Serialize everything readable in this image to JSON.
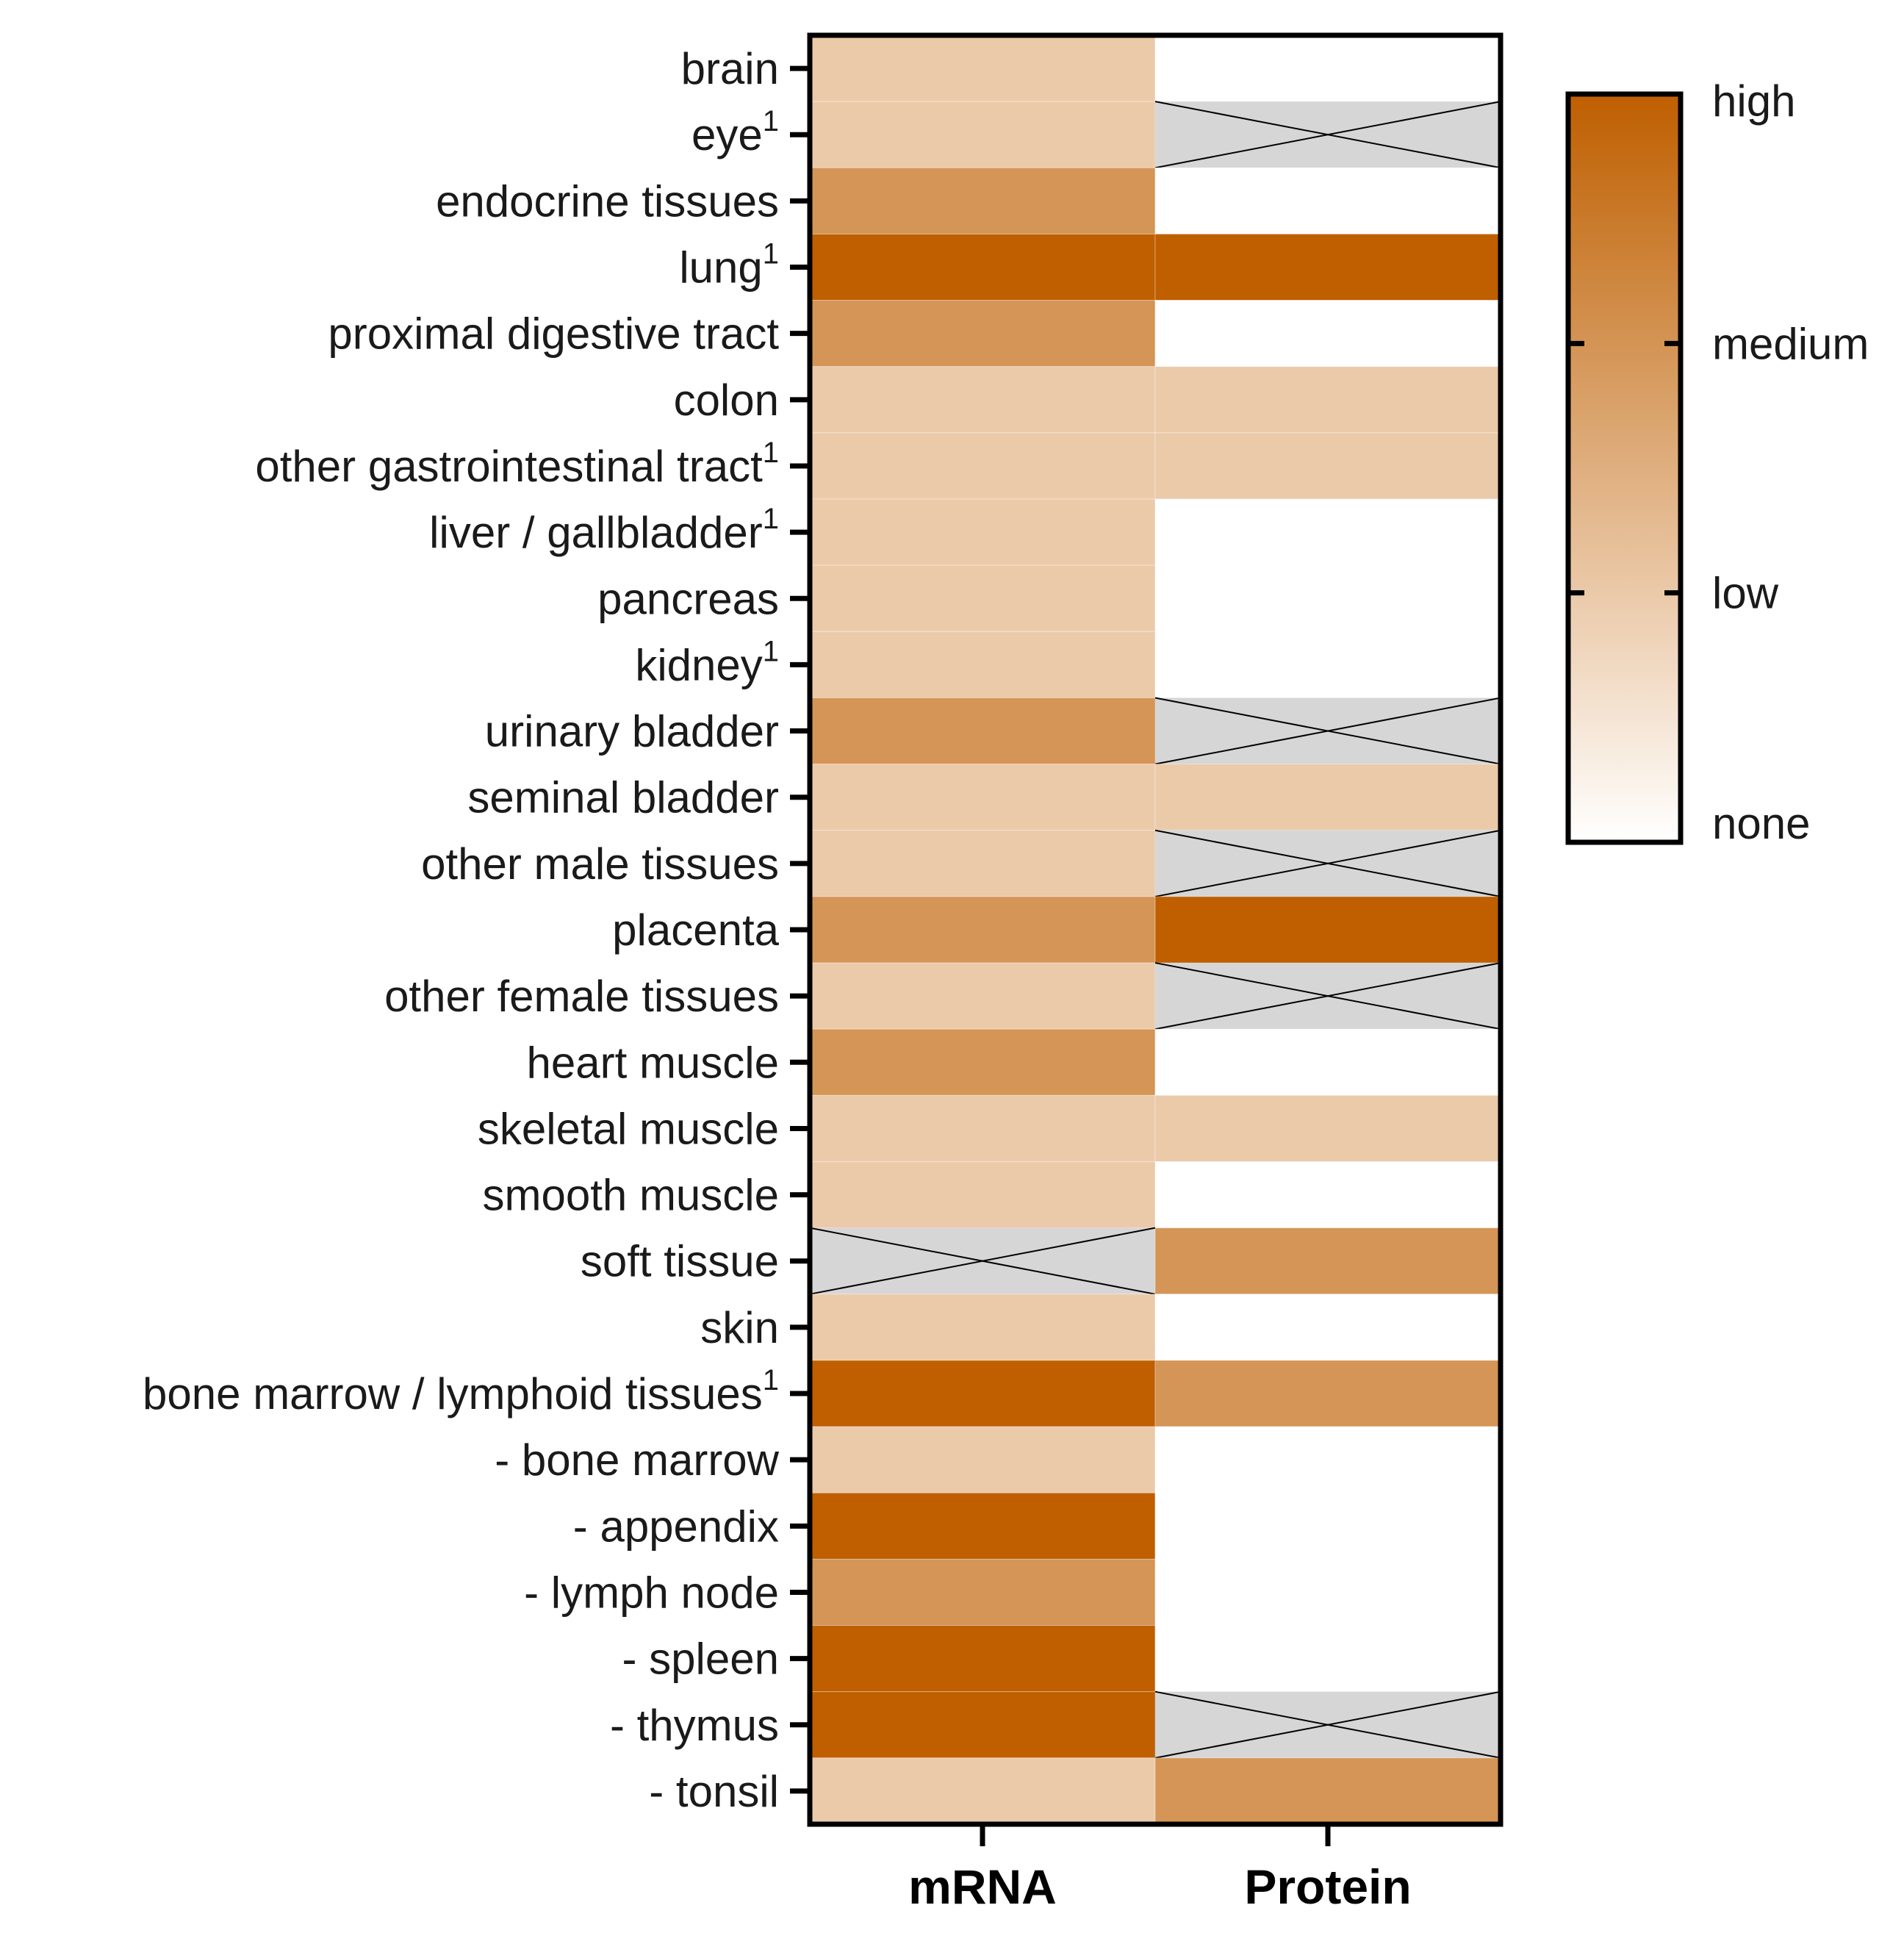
{
  "chart_data": {
    "type": "heatmap",
    "columns": [
      "mRNA",
      "Protein"
    ],
    "rows": [
      {
        "label": "brain",
        "sup": "",
        "mRNA": 1,
        "Protein": 0
      },
      {
        "label": "eye",
        "sup": "1",
        "mRNA": 1,
        "Protein": null
      },
      {
        "label": "endocrine tissues",
        "sup": "",
        "mRNA": 2,
        "Protein": 0
      },
      {
        "label": "lung",
        "sup": "1",
        "mRNA": 3,
        "Protein": 3
      },
      {
        "label": "proximal digestive tract",
        "sup": "",
        "mRNA": 2,
        "Protein": 0
      },
      {
        "label": "colon",
        "sup": "",
        "mRNA": 1,
        "Protein": 1
      },
      {
        "label": "other gastrointestinal tract",
        "sup": "1",
        "mRNA": 1,
        "Protein": 1
      },
      {
        "label": "liver / gallbladder",
        "sup": "1",
        "mRNA": 1,
        "Protein": 0
      },
      {
        "label": "pancreas",
        "sup": "",
        "mRNA": 1,
        "Protein": 0
      },
      {
        "label": "kidney",
        "sup": "1",
        "mRNA": 1,
        "Protein": 0
      },
      {
        "label": "urinary bladder",
        "sup": "",
        "mRNA": 2,
        "Protein": null
      },
      {
        "label": "seminal bladder",
        "sup": "",
        "mRNA": 1,
        "Protein": 1
      },
      {
        "label": "other male tissues",
        "sup": "",
        "mRNA": 1,
        "Protein": null
      },
      {
        "label": "placenta",
        "sup": "",
        "mRNA": 2,
        "Protein": 3
      },
      {
        "label": "other female tissues",
        "sup": "",
        "mRNA": 1,
        "Protein": null
      },
      {
        "label": "heart muscle",
        "sup": "",
        "mRNA": 2,
        "Protein": 0
      },
      {
        "label": "skeletal muscle",
        "sup": "",
        "mRNA": 1,
        "Protein": 1
      },
      {
        "label": "smooth muscle",
        "sup": "",
        "mRNA": 1,
        "Protein": 0
      },
      {
        "label": "soft tissue",
        "sup": "",
        "mRNA": null,
        "Protein": 2
      },
      {
        "label": "skin",
        "sup": "",
        "mRNA": 1,
        "Protein": 0
      },
      {
        "label": "bone marrow / lymphoid tissues",
        "sup": "1",
        "mRNA": 3,
        "Protein": 2
      },
      {
        "label": "- bone marrow",
        "sup": "",
        "mRNA": 1,
        "Protein": 0
      },
      {
        "label": "- appendix",
        "sup": "",
        "mRNA": 3,
        "Protein": 0
      },
      {
        "label": "- lymph node",
        "sup": "",
        "mRNA": 2,
        "Protein": 0
      },
      {
        "label": "- spleen",
        "sup": "",
        "mRNA": 3,
        "Protein": 0
      },
      {
        "label": "- thymus",
        "sup": "",
        "mRNA": 3,
        "Protein": null
      },
      {
        "label": "- tonsil",
        "sup": "",
        "mRNA": 1,
        "Protein": 2
      }
    ],
    "legend": {
      "placement": "right",
      "levels": [
        "none",
        "low",
        "medium",
        "high"
      ],
      "top_label": "high",
      "mid_label": "medium",
      "low_label": "low",
      "bottom_label": "none"
    },
    "colors": {
      "none": "#ffffff",
      "low": "#ebcaaa",
      "medium": "#d49556",
      "high": "#bf5f00",
      "missing": "#d6d6d6"
    }
  }
}
